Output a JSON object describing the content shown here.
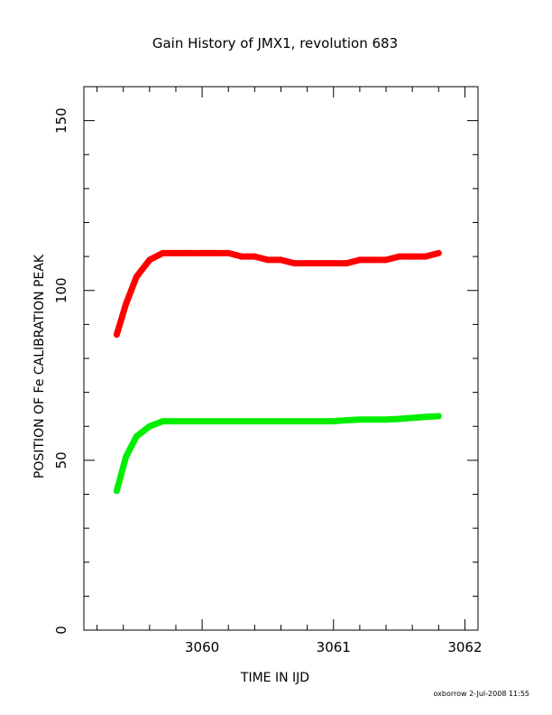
{
  "chart_data": {
    "type": "scatter",
    "title": "Gain History of JMX1, revolution 683",
    "xlabel": "TIME IN IJD",
    "ylabel": "POSITION OF Fe CALIBRATION PEAK",
    "xlim": [
      3059.1,
      3062.1
    ],
    "ylim": [
      0,
      160
    ],
    "xticks": [
      3060,
      3061,
      3062
    ],
    "xtick_labels": [
      "3060",
      "3061",
      "3062"
    ],
    "yticks": [
      0,
      50,
      100,
      150
    ],
    "ytick_labels": [
      "0",
      "50",
      "100",
      "150"
    ],
    "grid": false,
    "footer": "oxborrow 2-Jul-2008 11:55",
    "series": [
      {
        "marker": "plus",
        "color": "#000000",
        "x": [
          3059.35,
          3059.42,
          3059.5,
          3059.6,
          3059.7,
          3059.8,
          3059.9,
          3060.0,
          3060.1,
          3060.2,
          3060.3,
          3060.4,
          3060.5,
          3060.6,
          3060.7,
          3060.8,
          3060.9,
          3061.0,
          3061.1,
          3061.2,
          3061.3,
          3061.4,
          3061.5,
          3061.6,
          3061.7,
          3061.8
        ],
        "y": [
          87,
          96,
          104,
          109,
          111,
          111,
          111,
          111,
          111,
          111,
          110,
          110,
          109,
          109,
          108,
          108,
          108,
          108,
          108,
          109,
          109,
          109,
          110,
          110,
          110,
          111
        ]
      },
      {
        "marker": "line",
        "color": "#ff0000",
        "x": [
          3059.35,
          3059.42,
          3059.5,
          3059.6,
          3059.7,
          3059.8,
          3059.9,
          3060.0,
          3060.1,
          3060.2,
          3060.3,
          3060.4,
          3060.5,
          3060.6,
          3060.7,
          3060.8,
          3060.9,
          3061.0,
          3061.1,
          3061.2,
          3061.3,
          3061.4,
          3061.5,
          3061.6,
          3061.7,
          3061.8
        ],
        "y": [
          87,
          96,
          104,
          109,
          111,
          111,
          111,
          111,
          111,
          111,
          110,
          110,
          109,
          109,
          108,
          108,
          108,
          108,
          108,
          109,
          109,
          109,
          110,
          110,
          110,
          111
        ]
      },
      {
        "marker": "cross",
        "color": "#0000ff",
        "x": [
          3059.35,
          3059.42,
          3059.5,
          3059.6,
          3059.7,
          3059.8,
          3059.9,
          3060.0,
          3060.1,
          3060.2,
          3060.3,
          3060.4,
          3060.5,
          3060.6,
          3060.7,
          3060.8,
          3060.9,
          3061.0,
          3061.1,
          3061.2,
          3061.3,
          3061.4,
          3061.5,
          3061.6,
          3061.7,
          3061.8
        ],
        "y": [
          41,
          51,
          57,
          60,
          61.5,
          61.5,
          61.5,
          61.5,
          61.5,
          61.5,
          61.5,
          61.5,
          61.5,
          61.5,
          61.5,
          61.5,
          61.5,
          61.5,
          61.8,
          62,
          62,
          62,
          62.2,
          62.5,
          62.8,
          63
        ]
      },
      {
        "marker": "line",
        "color": "#00ee00",
        "x": [
          3059.35,
          3059.42,
          3059.5,
          3059.6,
          3059.7,
          3059.8,
          3059.9,
          3060.0,
          3060.1,
          3060.2,
          3060.3,
          3060.4,
          3060.5,
          3060.6,
          3060.7,
          3060.8,
          3060.9,
          3061.0,
          3061.1,
          3061.2,
          3061.3,
          3061.4,
          3061.5,
          3061.6,
          3061.7,
          3061.8
        ],
        "y": [
          41,
          51,
          57,
          60,
          61.5,
          61.5,
          61.5,
          61.5,
          61.5,
          61.5,
          61.5,
          61.5,
          61.5,
          61.5,
          61.5,
          61.5,
          61.5,
          61.5,
          61.8,
          62,
          62,
          62,
          62.2,
          62.5,
          62.8,
          63
        ]
      }
    ]
  }
}
